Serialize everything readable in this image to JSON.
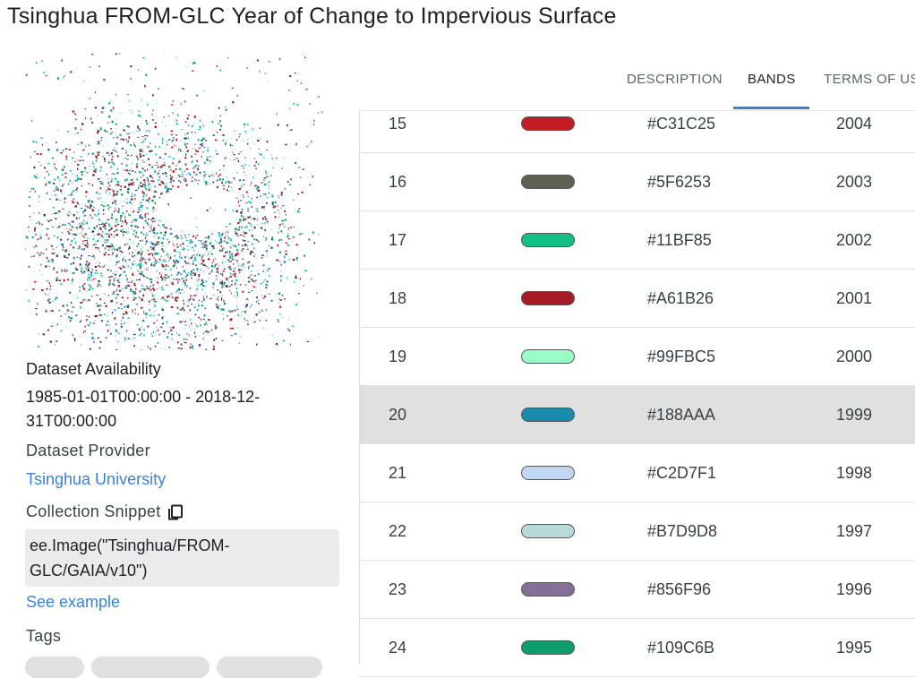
{
  "title": "Tsinghua FROM-GLC Year of Change to Impervious Surface",
  "sidebar": {
    "availability_label": "Dataset Availability",
    "availability_value_line1": "1985-01-01T00:00:00 - 2018-12-",
    "availability_value_line2": "31T00:00:00",
    "provider_label": "Dataset Provider",
    "provider_link": "Tsinghua University",
    "snippet_label": "Collection Snippet",
    "snippet_icon": "copy-icon",
    "snippet_line1": "ee.Image(\"Tsinghua/FROM-",
    "snippet_line2": "GLC/GAIA/v10\")",
    "see_example": "See example",
    "tags_label": "Tags"
  },
  "tabs": [
    {
      "label": "DESCRIPTION"
    },
    {
      "label": "BANDS"
    },
    {
      "label": "TERMS OF US"
    }
  ],
  "active_tab": "BANDS",
  "accent_color": "#3b82d6",
  "class_table": {
    "selected_value": "20",
    "rows": [
      {
        "value": "15",
        "color": "#C31C25",
        "hex": "#C31C25",
        "description": "2004"
      },
      {
        "value": "16",
        "color": "#5F6253",
        "hex": "#5F6253",
        "description": "2003"
      },
      {
        "value": "17",
        "color": "#11BF85",
        "hex": "#11BF85",
        "description": "2002"
      },
      {
        "value": "18",
        "color": "#A61B26",
        "hex": "#A61B26",
        "description": "2001"
      },
      {
        "value": "19",
        "color": "#99FBC5",
        "hex": "#99FBC5",
        "description": "2000"
      },
      {
        "value": "20",
        "color": "#188AAA",
        "hex": "#188AAA",
        "description": "1999"
      },
      {
        "value": "21",
        "color": "#C2D7F1",
        "hex": "#C2D7F1",
        "description": "1998"
      },
      {
        "value": "22",
        "color": "#B7D9D8",
        "hex": "#B7D9D8",
        "description": "1997"
      },
      {
        "value": "23",
        "color": "#856F96",
        "hex": "#856F96",
        "description": "1996"
      },
      {
        "value": "24",
        "color": "#109C6B",
        "hex": "#109C6B",
        "description": "1995"
      }
    ]
  }
}
